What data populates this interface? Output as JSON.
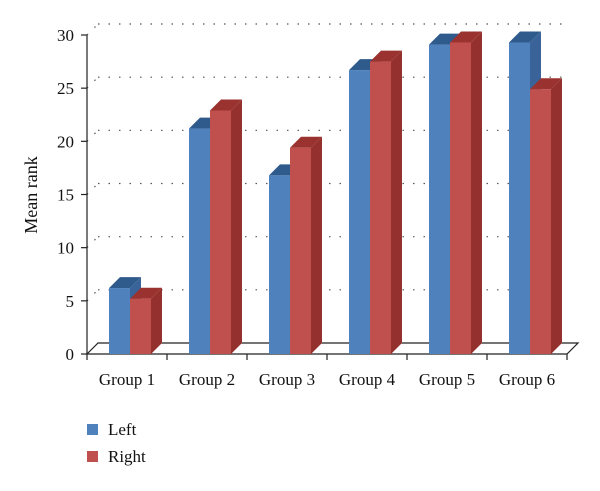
{
  "chart_data": {
    "type": "bar",
    "title": "",
    "xlabel": "",
    "ylabel": "Mean rank",
    "ylim": [
      0,
      30
    ],
    "yticks": [
      0,
      5,
      10,
      15,
      20,
      25,
      30
    ],
    "categories": [
      "Group 1",
      "Group 2",
      "Group 3",
      "Group 4",
      "Group 5",
      "Group 6"
    ],
    "series": [
      {
        "name": "Left",
        "values": [
          6.2,
          21.2,
          16.8,
          26.7,
          29.1,
          29.3
        ]
      },
      {
        "name": "Right",
        "values": [
          5.2,
          22.9,
          19.4,
          27.5,
          29.3,
          24.9
        ]
      }
    ],
    "grid": true,
    "grid_style": "dotted",
    "style": "3d-column",
    "legend_position": "bottom-left",
    "colors": {
      "Left": "#4f81bd",
      "Right": "#c0504d",
      "Left_top": "#2f5a8c",
      "Right_top": "#9a3330",
      "Left_side": "#3a6499",
      "Right_side": "#94302d"
    }
  }
}
